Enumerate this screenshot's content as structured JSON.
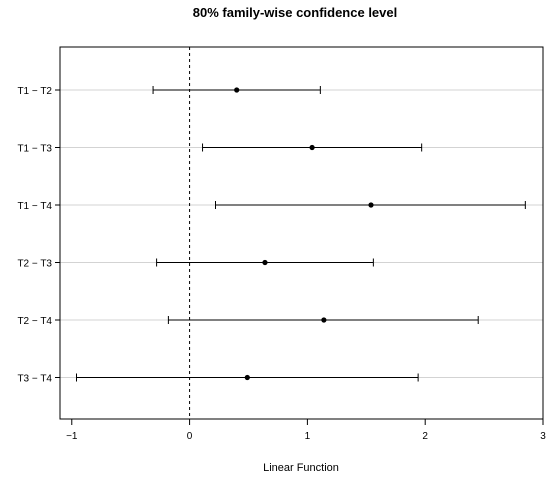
{
  "chart_data": {
    "type": "interval",
    "title": "80% family-wise confidence level",
    "xlabel": "Linear Function",
    "ylabel": "",
    "xlim": [
      -1.1,
      3.0
    ],
    "x_ticks": [
      -1,
      0,
      1,
      2,
      3
    ],
    "x_tick_labels": [
      "−1",
      "0",
      "1",
      "2",
      "3"
    ],
    "reference_line": 0,
    "grid": "horizontal",
    "comparisons": [
      {
        "label": "T1 − T2",
        "estimate": 0.4,
        "lower": -0.31,
        "upper": 1.11
      },
      {
        "label": "T1 − T3",
        "estimate": 1.04,
        "lower": 0.11,
        "upper": 1.97
      },
      {
        "label": "T1 − T4",
        "estimate": 1.54,
        "lower": 0.22,
        "upper": 2.85
      },
      {
        "label": "T2 − T3",
        "estimate": 0.64,
        "lower": -0.28,
        "upper": 1.56
      },
      {
        "label": "T2 − T4",
        "estimate": 1.14,
        "lower": -0.18,
        "upper": 2.45
      },
      {
        "label": "T3 − T4",
        "estimate": 0.49,
        "lower": -0.96,
        "upper": 1.94
      }
    ]
  }
}
